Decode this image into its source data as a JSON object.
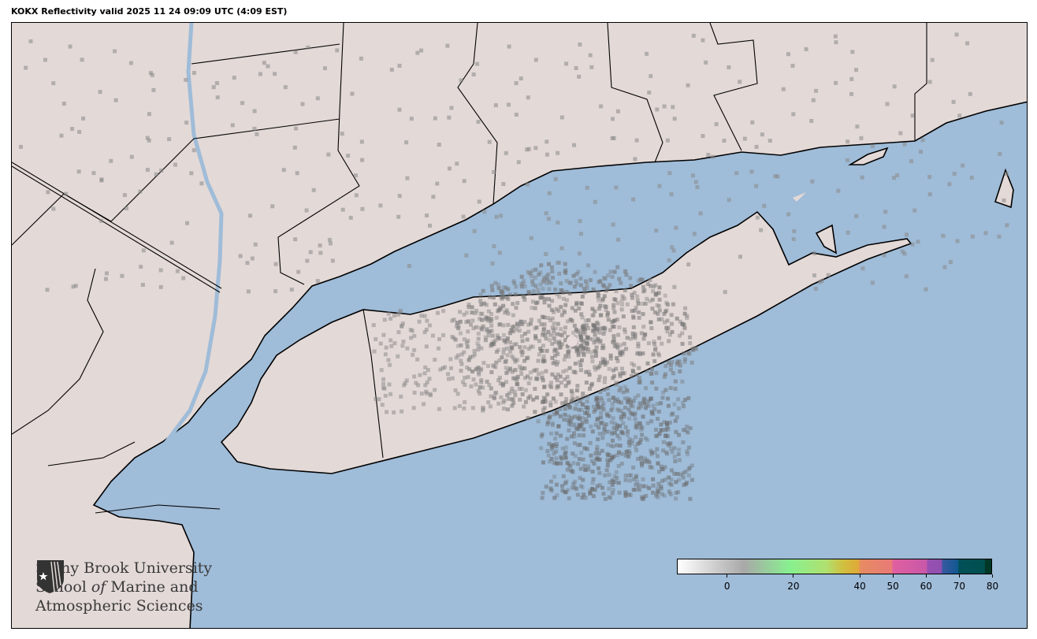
{
  "title": "KOKX Reflectivity valid 2025 11 24 09:09 UTC (4:09 EST)",
  "logo": {
    "line1": "Stony Brook University",
    "line2a": "School ",
    "line2b": "of",
    "line2c": " Marine and",
    "line3": "Atmospheric Sciences"
  },
  "colorbar": {
    "range": [
      -15,
      80
    ],
    "ticks": [
      "0",
      "20",
      "40",
      "50",
      "60",
      "70",
      "80"
    ],
    "tick_values": [
      0,
      20,
      40,
      50,
      60,
      70,
      80
    ],
    "stops": [
      {
        "value": -15,
        "color": "#ffffff"
      },
      {
        "value": 5,
        "color": "#a8a8a8"
      },
      {
        "value": 19,
        "color": "#88f090"
      },
      {
        "value": 30,
        "color": "#b0e070"
      },
      {
        "value": 35,
        "color": "#d0c040"
      },
      {
        "value": 40,
        "color": "#e0a838"
      },
      {
        "value": 40.1,
        "color": "#e68c60"
      },
      {
        "value": 50,
        "color": "#e87a78"
      },
      {
        "value": 50.1,
        "color": "#e060a0"
      },
      {
        "value": 60.5,
        "color": "#c858a8"
      },
      {
        "value": 60.6,
        "color": "#9850b0"
      },
      {
        "value": 65,
        "color": "#9050b0"
      },
      {
        "value": 65.1,
        "color": "#3858a0"
      },
      {
        "value": 70,
        "color": "#105890"
      },
      {
        "value": 70.1,
        "color": "#005058"
      },
      {
        "value": 78,
        "color": "#005050"
      },
      {
        "value": 78.1,
        "color": "#003828"
      },
      {
        "value": 80,
        "color": "#003828"
      }
    ]
  },
  "colors": {
    "land": "#e3d9d7",
    "water": "#9fbcd8",
    "border": "#000000"
  }
}
